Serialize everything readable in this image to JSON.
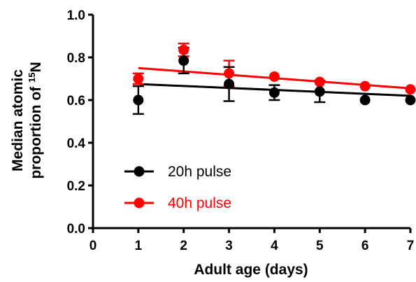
{
  "chart_data": {
    "type": "scatter",
    "title": "",
    "xlabel": "Adult age (days)",
    "ylabel_line1": "Median atomic",
    "ylabel_line2_prefix": "proportion of ",
    "ylabel_superscript": "15",
    "ylabel_line2_suffix": "N",
    "xlim": [
      0,
      7
    ],
    "ylim": [
      0,
      1.0
    ],
    "x_ticks": [
      "0",
      "1",
      "2",
      "3",
      "4",
      "5",
      "6",
      "7"
    ],
    "y_ticks": [
      "0.0",
      "0.2",
      "0.4",
      "0.6",
      "0.8",
      "1.0"
    ],
    "legend_position": "bottom-left",
    "series": [
      {
        "name": "20h pulse",
        "color": "#000000",
        "x": [
          1,
          2,
          3,
          4,
          5,
          6,
          7
        ],
        "y": [
          0.6,
          0.785,
          0.675,
          0.635,
          0.64,
          0.6,
          0.6
        ],
        "err": [
          0.065,
          0.06,
          0.08,
          0.035,
          0.05,
          0.0,
          0.0
        ],
        "fit": {
          "x": [
            1,
            7
          ],
          "y": [
            0.675,
            0.62
          ]
        }
      },
      {
        "name": "40h pulse",
        "color": "#ff0000",
        "x": [
          1,
          2,
          3,
          4,
          5,
          6,
          7
        ],
        "y": [
          0.7,
          0.835,
          0.725,
          0.71,
          0.685,
          0.665,
          0.65
        ],
        "err": [
          0.025,
          0.03,
          0.06,
          0.0,
          0.0,
          0.0,
          0.0
        ],
        "fit": {
          "x": [
            1,
            7
          ],
          "y": [
            0.75,
            0.655
          ]
        }
      }
    ]
  }
}
